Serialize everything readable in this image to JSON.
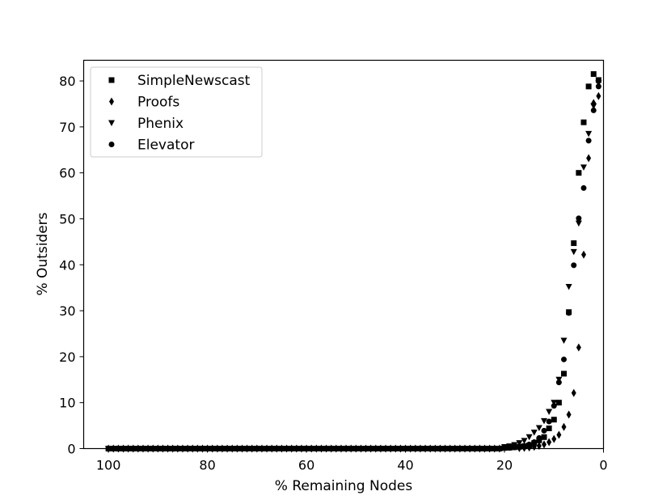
{
  "chart_data": {
    "type": "scatter",
    "title": "",
    "xlabel": "% Remaining Nodes",
    "ylabel": "% Outsiders",
    "xlim": [
      105,
      0
    ],
    "ylim": [
      0,
      84.5
    ],
    "x_inverted": true,
    "xticks": [
      100,
      80,
      60,
      40,
      20,
      0
    ],
    "yticks": [
      0,
      10,
      20,
      30,
      40,
      50,
      60,
      70,
      80
    ],
    "grid": false,
    "legend_position": "top-left",
    "series": [
      {
        "name": "SimpleNewscast",
        "marker": "square",
        "color": "#000000",
        "points": [
          [
            1,
            80.2
          ],
          [
            2,
            81.5
          ],
          [
            3,
            78.8
          ],
          [
            4,
            71
          ],
          [
            5,
            60
          ],
          [
            6,
            44.7
          ],
          [
            7,
            29.7
          ],
          [
            8,
            16.3
          ],
          [
            9,
            10
          ],
          [
            10,
            6.3
          ],
          [
            11,
            4.4
          ],
          [
            12,
            2.5
          ],
          [
            13,
            1.8
          ],
          [
            14,
            1.2
          ],
          [
            15,
            0.7
          ],
          [
            16,
            0.5
          ],
          [
            17,
            0.4
          ],
          [
            18,
            0.3
          ],
          [
            19,
            0.2
          ],
          [
            20,
            0.15
          ]
        ]
      },
      {
        "name": "Proofs",
        "marker": "diamond",
        "color": "#000000",
        "points": [
          [
            1,
            76.7
          ],
          [
            2,
            75.2
          ],
          [
            3,
            63.2
          ],
          [
            4,
            42.2
          ],
          [
            5,
            22
          ],
          [
            6,
            12.1
          ],
          [
            7,
            7.4
          ],
          [
            8,
            4.7
          ],
          [
            9,
            3
          ],
          [
            10,
            2.1
          ],
          [
            11,
            1.4
          ],
          [
            12,
            0.9
          ],
          [
            13,
            0.6
          ],
          [
            14,
            0.4
          ],
          [
            15,
            0.25
          ],
          [
            16,
            0.15
          ],
          [
            17,
            0.1
          ]
        ]
      },
      {
        "name": "Phenix",
        "marker": "triangle-down",
        "color": "#000000",
        "points": [
          [
            1,
            79.5
          ],
          [
            2,
            74.5
          ],
          [
            3,
            68.5
          ],
          [
            4,
            61.2
          ],
          [
            5,
            49
          ],
          [
            6,
            42.8
          ],
          [
            7,
            35.2
          ],
          [
            8,
            23.5
          ],
          [
            9,
            15
          ],
          [
            10,
            10
          ],
          [
            11,
            8
          ],
          [
            12,
            6
          ],
          [
            13,
            4.5
          ],
          [
            14,
            3.5
          ],
          [
            15,
            2.5
          ],
          [
            16,
            1.7
          ],
          [
            17,
            1.2
          ],
          [
            18,
            0.8
          ],
          [
            19,
            0.5
          ],
          [
            20,
            0.35
          ]
        ]
      },
      {
        "name": "Elevator",
        "marker": "circle",
        "color": "#000000",
        "points": [
          [
            1,
            78.8
          ],
          [
            2,
            73.6
          ],
          [
            3,
            67
          ],
          [
            4,
            56.7
          ],
          [
            5,
            50.1
          ],
          [
            6,
            39.9
          ],
          [
            7,
            29.5
          ],
          [
            8,
            19.4
          ],
          [
            9,
            14.4
          ],
          [
            10,
            9.3
          ],
          [
            11,
            5.9
          ],
          [
            12,
            3.9
          ],
          [
            13,
            2.3
          ],
          [
            14,
            1.4
          ],
          [
            15,
            0.9
          ],
          [
            16,
            0.6
          ],
          [
            17,
            0.4
          ],
          [
            18,
            0.25
          ],
          [
            19,
            0.15
          ],
          [
            20,
            0.1
          ]
        ]
      }
    ],
    "baseline_points": [
      100,
      99,
      98,
      97,
      96,
      95,
      94,
      93,
      92,
      91,
      90,
      89,
      88,
      87,
      86,
      85,
      84,
      83,
      82,
      81,
      80,
      79,
      78,
      77,
      76,
      75,
      74,
      73,
      72,
      71,
      70,
      69,
      68,
      67,
      66,
      65,
      64,
      63,
      62,
      61,
      60,
      59,
      58,
      57,
      56,
      55,
      54,
      53,
      52,
      51,
      50,
      49,
      48,
      47,
      46,
      45,
      44,
      43,
      42,
      41,
      40,
      39,
      38,
      37,
      36,
      35,
      34,
      33,
      32,
      31,
      30,
      29,
      28,
      27,
      26,
      25,
      24,
      23,
      22,
      21
    ]
  }
}
